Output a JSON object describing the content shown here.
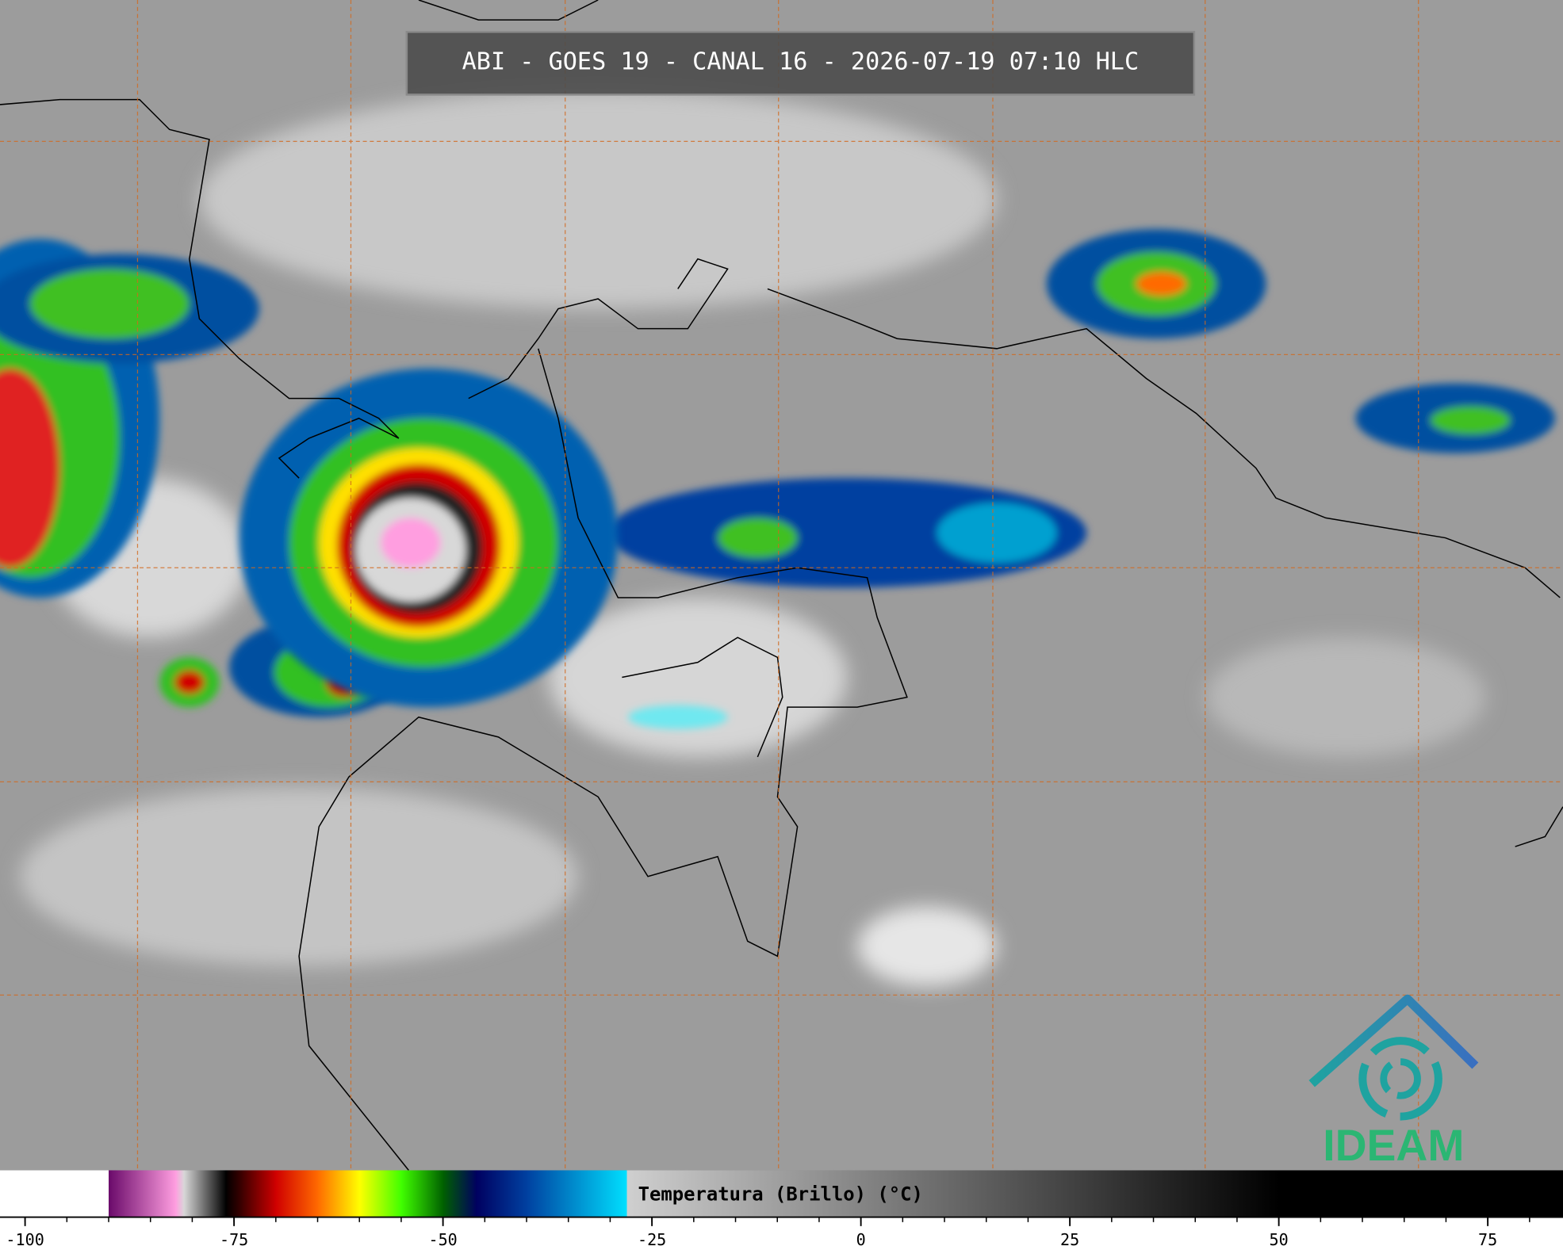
{
  "header": {
    "title": "ABI - GOES 19 - CANAL 16 - 2026-07-19 07:10 HLC"
  },
  "colorbar": {
    "label": "Temperatura (Brillo) (°C)",
    "clim": [
      -103,
      84
    ],
    "ticks": [
      -100,
      -75,
      -50,
      -25,
      0,
      25,
      50,
      75
    ],
    "minor_tick_step": 5,
    "colormap": [
      {
        "value": -103,
        "color": "#ffffff"
      },
      {
        "value": -90,
        "color": "#ffffff"
      },
      {
        "value": -90,
        "color": "#6a0a6a"
      },
      {
        "value": -82,
        "color": "#ff9ee0"
      },
      {
        "value": -81,
        "color": "#d8d8d8"
      },
      {
        "value": -76,
        "color": "#000000"
      },
      {
        "value": -74,
        "color": "#400000"
      },
      {
        "value": -70,
        "color": "#d00000"
      },
      {
        "value": -65,
        "color": "#ff6a00"
      },
      {
        "value": -60,
        "color": "#ffff00"
      },
      {
        "value": -55,
        "color": "#40ff00"
      },
      {
        "value": -50,
        "color": "#006000"
      },
      {
        "value": -46,
        "color": "#000060"
      },
      {
        "value": -40,
        "color": "#0040a0"
      },
      {
        "value": -28,
        "color": "#00e0ff"
      },
      {
        "value": -28,
        "color": "#cfcfcf"
      },
      {
        "value": 50,
        "color": "#000000"
      },
      {
        "value": 84,
        "color": "#000000"
      }
    ]
  },
  "logo": {
    "text": "IDEAM"
  }
}
